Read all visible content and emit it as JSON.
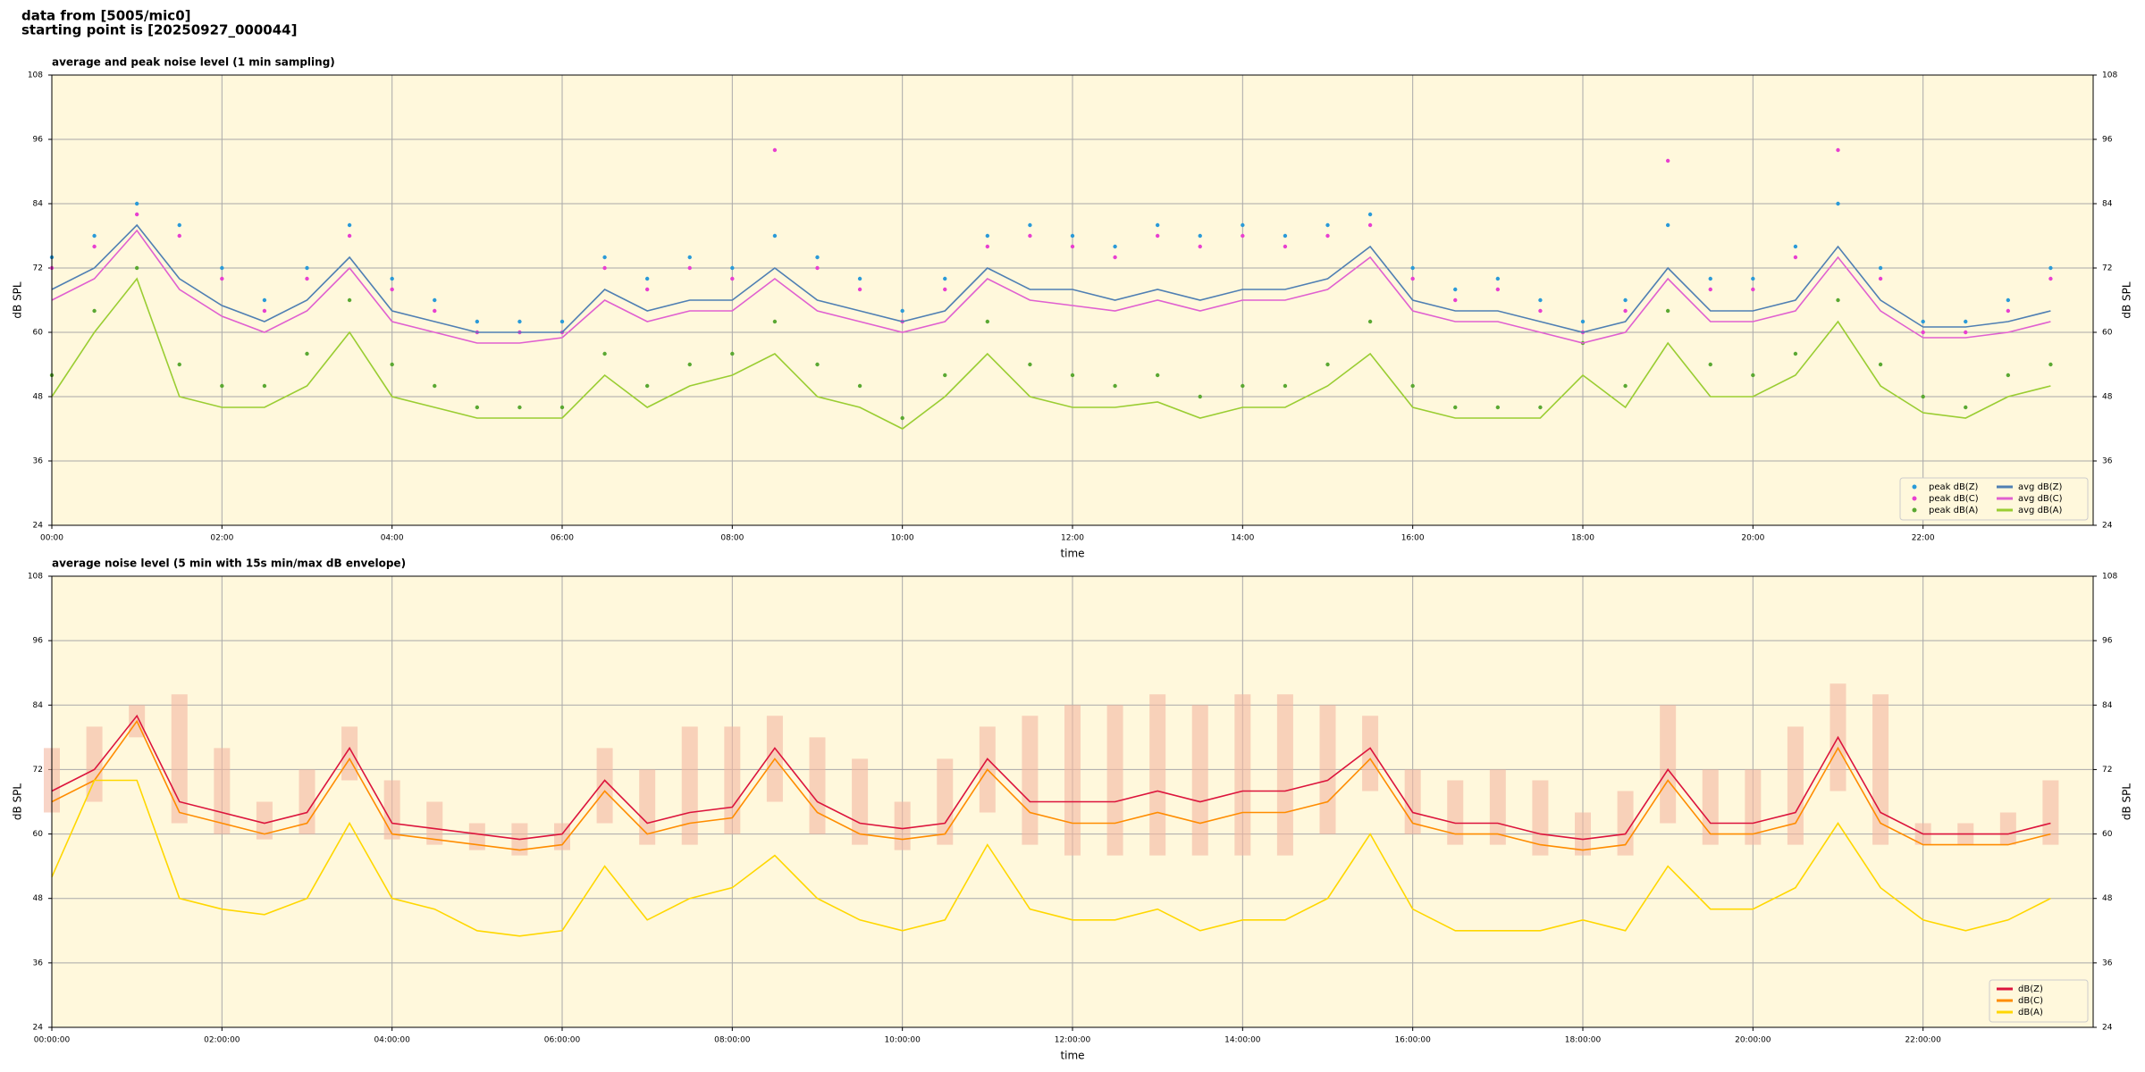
{
  "header": {
    "line1": "data from [5005/mic0]",
    "line2": "starting point is [20250927_000044]"
  },
  "chart_data": [
    {
      "type": "line",
      "title": "average and peak noise level (1 min sampling)",
      "xlabel": "time",
      "ylabel": "dB SPL",
      "x": [
        0,
        0.5,
        1,
        1.5,
        2,
        2.5,
        3,
        3.5,
        4,
        4.5,
        5,
        5.5,
        6,
        6.5,
        7,
        7.5,
        8,
        8.5,
        9,
        9.5,
        10,
        10.5,
        11,
        11.5,
        12,
        12.5,
        13,
        13.5,
        14,
        14.5,
        15,
        15.5,
        16,
        16.5,
        17,
        17.5,
        18,
        18.5,
        19,
        19.5,
        20,
        20.5,
        21,
        21.5,
        22,
        22.5,
        23,
        23.5
      ],
      "xlim": [
        0,
        24
      ],
      "xticks": [
        {
          "value": 0,
          "label": "00:00"
        },
        {
          "value": 2,
          "label": "02:00"
        },
        {
          "value": 4,
          "label": "04:00"
        },
        {
          "value": 6,
          "label": "06:00"
        },
        {
          "value": 8,
          "label": "08:00"
        },
        {
          "value": 10,
          "label": "10:00"
        },
        {
          "value": 12,
          "label": "12:00"
        },
        {
          "value": 14,
          "label": "14:00"
        },
        {
          "value": 16,
          "label": "16:00"
        },
        {
          "value": 18,
          "label": "18:00"
        },
        {
          "value": 20,
          "label": "20:00"
        },
        {
          "value": 22,
          "label": "22:00"
        }
      ],
      "ylim": [
        24,
        108
      ],
      "yticks": [
        24,
        36,
        48,
        60,
        72,
        84,
        96,
        108
      ],
      "grid": true,
      "legend": "lower right",
      "series": [
        {
          "name": "peak dB(Z)",
          "type": "scatter",
          "color": "#2a9ad8",
          "values": [
            74,
            78,
            84,
            80,
            72,
            66,
            72,
            80,
            70,
            66,
            62,
            62,
            62,
            74,
            70,
            74,
            72,
            78,
            74,
            70,
            64,
            70,
            78,
            80,
            78,
            76,
            80,
            78,
            80,
            78,
            80,
            82,
            72,
            68,
            70,
            66,
            62,
            66,
            80,
            70,
            70,
            76,
            84,
            72,
            62,
            62,
            66,
            72
          ]
        },
        {
          "name": "peak dB(C)",
          "type": "scatter",
          "color": "#e83fd0",
          "values": [
            72,
            76,
            82,
            78,
            70,
            64,
            70,
            78,
            68,
            64,
            60,
            60,
            60,
            72,
            68,
            72,
            70,
            94,
            72,
            68,
            62,
            68,
            76,
            78,
            76,
            74,
            78,
            76,
            78,
            76,
            78,
            80,
            70,
            66,
            68,
            64,
            60,
            64,
            92,
            68,
            68,
            74,
            94,
            70,
            60,
            60,
            64,
            70
          ]
        },
        {
          "name": "peak dB(A)",
          "type": "scatter",
          "color": "#5aa832",
          "values": [
            52,
            64,
            72,
            54,
            50,
            50,
            56,
            66,
            54,
            50,
            46,
            46,
            46,
            56,
            50,
            54,
            56,
            62,
            54,
            50,
            44,
            52,
            62,
            54,
            52,
            50,
            52,
            48,
            50,
            50,
            54,
            62,
            50,
            46,
            46,
            46,
            58,
            50,
            64,
            54,
            52,
            56,
            66,
            54,
            48,
            46,
            52,
            54
          ]
        },
        {
          "name": "avg dB(Z)",
          "type": "line",
          "color": "#4f7fb3",
          "values": [
            68,
            72,
            80,
            70,
            65,
            62,
            66,
            74,
            64,
            62,
            60,
            60,
            60,
            68,
            64,
            66,
            66,
            72,
            66,
            64,
            62,
            64,
            72,
            68,
            68,
            66,
            68,
            66,
            68,
            68,
            70,
            76,
            66,
            64,
            64,
            62,
            60,
            62,
            72,
            64,
            64,
            66,
            76,
            66,
            61,
            61,
            62,
            64
          ]
        },
        {
          "name": "avg dB(C)",
          "type": "line",
          "color": "#e060d0",
          "values": [
            66,
            70,
            79,
            68,
            63,
            60,
            64,
            72,
            62,
            60,
            58,
            58,
            59,
            66,
            62,
            64,
            64,
            70,
            64,
            62,
            60,
            62,
            70,
            66,
            65,
            64,
            66,
            64,
            66,
            66,
            68,
            74,
            64,
            62,
            62,
            60,
            58,
            60,
            70,
            62,
            62,
            64,
            74,
            64,
            59,
            59,
            60,
            62
          ]
        },
        {
          "name": "avg dB(A)",
          "type": "line",
          "color": "#9acd32",
          "values": [
            48,
            60,
            70,
            48,
            46,
            46,
            50,
            60,
            48,
            46,
            44,
            44,
            44,
            52,
            46,
            50,
            52,
            56,
            48,
            46,
            42,
            48,
            56,
            48,
            46,
            46,
            47,
            44,
            46,
            46,
            50,
            56,
            46,
            44,
            44,
            44,
            52,
            46,
            58,
            48,
            48,
            52,
            62,
            50,
            45,
            44,
            48,
            50
          ]
        }
      ]
    },
    {
      "type": "line",
      "title": "average noise level (5 min with 15s min/max dB envelope)",
      "xlabel": "time",
      "ylabel": "dB SPL",
      "x": [
        0,
        0.5,
        1,
        1.5,
        2,
        2.5,
        3,
        3.5,
        4,
        4.5,
        5,
        5.5,
        6,
        6.5,
        7,
        7.5,
        8,
        8.5,
        9,
        9.5,
        10,
        10.5,
        11,
        11.5,
        12,
        12.5,
        13,
        13.5,
        14,
        14.5,
        15,
        15.5,
        16,
        16.5,
        17,
        17.5,
        18,
        18.5,
        19,
        19.5,
        20,
        20.5,
        21,
        21.5,
        22,
        22.5,
        23,
        23.5
      ],
      "xlim": [
        0,
        24
      ],
      "xticks": [
        {
          "value": 0,
          "label": "00:00:00"
        },
        {
          "value": 2,
          "label": "02:00:00"
        },
        {
          "value": 4,
          "label": "04:00:00"
        },
        {
          "value": 6,
          "label": "06:00:00"
        },
        {
          "value": 8,
          "label": "08:00:00"
        },
        {
          "value": 10,
          "label": "10:00:00"
        },
        {
          "value": 12,
          "label": "12:00:00"
        },
        {
          "value": 14,
          "label": "14:00:00"
        },
        {
          "value": 16,
          "label": "16:00:00"
        },
        {
          "value": 18,
          "label": "18:00:00"
        },
        {
          "value": 20,
          "label": "20:00:00"
        },
        {
          "value": 22,
          "label": "22:00:00"
        }
      ],
      "ylim": [
        24,
        108
      ],
      "yticks": [
        24,
        36,
        48,
        60,
        72,
        84,
        96,
        108
      ],
      "grid": true,
      "legend": "lower right",
      "band": {
        "color": "#f4b8a2",
        "lower": [
          64,
          66,
          78,
          62,
          60,
          59,
          60,
          70,
          59,
          58,
          57,
          56,
          57,
          62,
          58,
          58,
          60,
          66,
          60,
          58,
          57,
          58,
          64,
          58,
          56,
          56,
          56,
          56,
          56,
          56,
          60,
          68,
          60,
          58,
          58,
          56,
          56,
          56,
          62,
          58,
          58,
          58,
          68,
          58,
          58,
          58,
          58,
          58
        ],
        "upper": [
          76,
          80,
          84,
          86,
          76,
          66,
          72,
          80,
          70,
          66,
          62,
          62,
          62,
          76,
          72,
          80,
          80,
          82,
          78,
          74,
          66,
          74,
          80,
          82,
          84,
          84,
          86,
          84,
          86,
          86,
          84,
          82,
          72,
          70,
          72,
          70,
          64,
          68,
          84,
          72,
          72,
          80,
          88,
          86,
          62,
          62,
          64,
          70
        ]
      },
      "series": [
        {
          "name": "dB(Z)",
          "type": "line",
          "color": "#dc143c",
          "values": [
            68,
            72,
            82,
            66,
            64,
            62,
            64,
            76,
            62,
            61,
            60,
            59,
            60,
            70,
            62,
            64,
            65,
            76,
            66,
            62,
            61,
            62,
            74,
            66,
            66,
            66,
            68,
            66,
            68,
            68,
            70,
            76,
            64,
            62,
            62,
            60,
            59,
            60,
            72,
            62,
            62,
            64,
            78,
            64,
            60,
            60,
            60,
            62
          ]
        },
        {
          "name": "dB(C)",
          "type": "line",
          "color": "#ff8c00",
          "values": [
            66,
            70,
            81,
            64,
            62,
            60,
            62,
            74,
            60,
            59,
            58,
            57,
            58,
            68,
            60,
            62,
            63,
            74,
            64,
            60,
            59,
            60,
            72,
            64,
            62,
            62,
            64,
            62,
            64,
            64,
            66,
            74,
            62,
            60,
            60,
            58,
            57,
            58,
            70,
            60,
            60,
            62,
            76,
            62,
            58,
            58,
            58,
            60
          ]
        },
        {
          "name": "dB(A)",
          "type": "line",
          "color": "#ffd700",
          "values": [
            52,
            70,
            70,
            48,
            46,
            45,
            48,
            62,
            48,
            46,
            42,
            41,
            42,
            54,
            44,
            48,
            50,
            56,
            48,
            44,
            42,
            44,
            58,
            46,
            44,
            44,
            46,
            42,
            44,
            44,
            48,
            60,
            46,
            42,
            42,
            42,
            44,
            42,
            54,
            46,
            46,
            50,
            62,
            50,
            44,
            42,
            44,
            48
          ]
        }
      ]
    }
  ]
}
